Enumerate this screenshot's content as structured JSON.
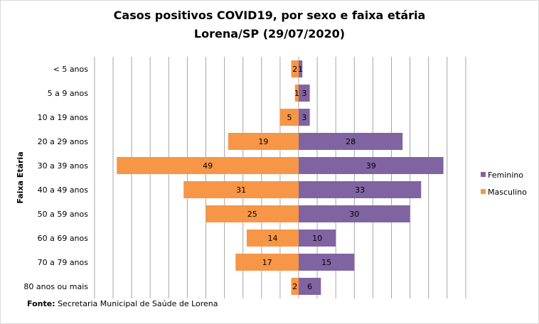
{
  "chart_data": {
    "type": "bar",
    "orientation": "horizontal-population-pyramid",
    "title": "Casos positivos  COVID19, por sexo e faixa etária",
    "subtitle": "Lorena/SP (29/07/2020)",
    "ylabel": "Faixa Etária",
    "xlabel": "",
    "categories": [
      "< 5 anos",
      "5 a 9 anos",
      "10 a 19 anos",
      "20 a 29 anos",
      "30 a 39 anos",
      "40 a 49 anos",
      "50 a 59 anos",
      "60 a 69 anos ",
      "70 a 79 anos",
      "80 anos ou mais"
    ],
    "series": [
      {
        "name": "Feminino",
        "color": "#8064a2",
        "side": "right",
        "values": [
          1,
          3,
          3,
          28,
          39,
          33,
          30,
          10,
          15,
          6
        ]
      },
      {
        "name": "Masculino",
        "color": "#f79646",
        "side": "left",
        "values": [
          2,
          1,
          5,
          19,
          49,
          31,
          25,
          14,
          17,
          2
        ]
      }
    ],
    "xlim": [
      -55,
      45
    ],
    "grid": true,
    "legend_position": "right"
  },
  "source": {
    "label": "Fonte:",
    "text": " Secretaria Municipal de Saúde de Lorena"
  }
}
